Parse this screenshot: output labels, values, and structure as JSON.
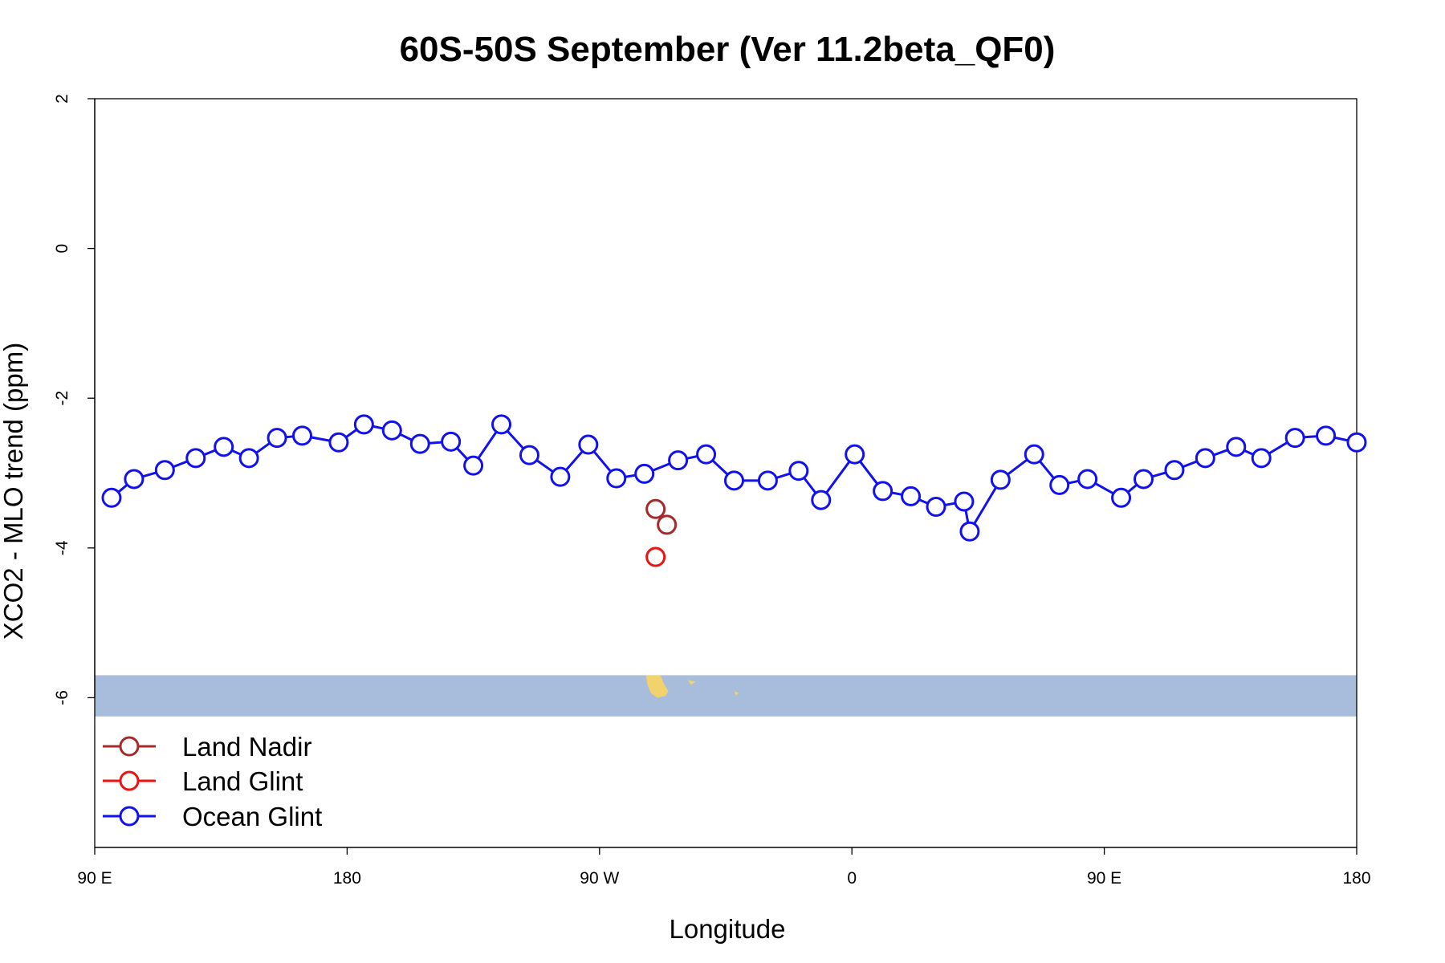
{
  "chart_data": {
    "type": "line",
    "title": "60S-50S September (Ver 11.2beta_QF0)",
    "xlabel": "Longitude",
    "ylabel": "XCO2 - MLO trend (ppm)",
    "xlim": [
      90,
      540
    ],
    "ylim": [
      -8,
      2
    ],
    "x_ticks": [
      {
        "value": 90,
        "label": "90 E"
      },
      {
        "value": 180,
        "label": "180"
      },
      {
        "value": 270,
        "label": "90 W"
      },
      {
        "value": 360,
        "label": "0"
      },
      {
        "value": 450,
        "label": "90 E"
      },
      {
        "value": 540,
        "label": "180"
      }
    ],
    "y_ticks": [
      {
        "value": 2,
        "label": "2"
      },
      {
        "value": 0,
        "label": "0"
      },
      {
        "value": -2,
        "label": "-2"
      },
      {
        "value": -4,
        "label": "-4"
      },
      {
        "value": -6,
        "label": "-6"
      }
    ],
    "grid": false,
    "legend_position": "bottom-left",
    "map_strip": {
      "y_range": [
        -6.25,
        -5.7
      ],
      "ocean_color": "#a7bddb",
      "land_color": "#f2d36b"
    },
    "series": [
      {
        "name": "Land Nadir",
        "color": "#a52a2a",
        "x": [
          290,
          294
        ],
        "y": [
          -3.48,
          -3.69
        ]
      },
      {
        "name": "Land Glint",
        "color": "#ee1111",
        "x": [
          290
        ],
        "y": [
          -4.12
        ]
      },
      {
        "name": "Ocean Glint",
        "color": "#1111ee",
        "x": [
          96,
          104,
          115,
          126,
          136,
          145,
          155,
          164,
          177,
          186,
          196,
          206,
          217,
          225,
          235,
          245,
          256,
          266,
          276,
          286,
          298,
          308,
          318,
          330,
          341,
          349,
          361,
          371,
          381,
          390,
          400,
          402,
          413,
          425,
          434,
          444,
          456,
          464,
          475,
          486,
          497,
          506,
          518,
          529,
          540
        ],
        "y": [
          -3.33,
          -3.08,
          -2.96,
          -2.8,
          -2.65,
          -2.8,
          -2.53,
          -2.5,
          -2.59,
          -2.35,
          -2.43,
          -2.61,
          -2.58,
          -2.9,
          -2.35,
          -2.76,
          -3.05,
          -2.62,
          -3.07,
          -3.01,
          -2.83,
          -2.75,
          -3.1,
          -3.1,
          -2.97,
          -3.36,
          -2.75,
          -3.24,
          -3.31,
          -3.45,
          -3.38,
          -3.78,
          -3.09,
          -2.75,
          -3.16,
          -3.08,
          -3.33,
          -3.08,
          -2.96,
          -2.8,
          -2.65,
          -2.8,
          -2.53,
          -2.5,
          -2.59
        ]
      }
    ]
  }
}
